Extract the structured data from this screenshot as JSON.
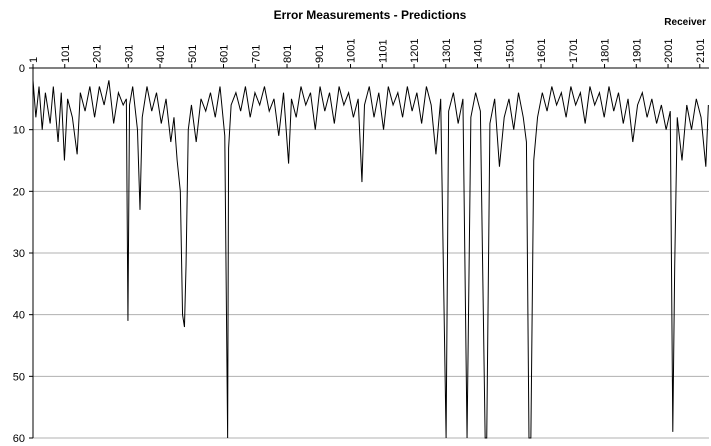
{
  "chart_data": {
    "type": "line",
    "title": "Error Measurements - Predictions",
    "x_label": "Receiver",
    "color": "#000000",
    "y_inverted": true,
    "grid": true,
    "xaxis_position": "top",
    "xlim": [
      1,
      2130
    ],
    "ylim": [
      0,
      60
    ],
    "xticks": [
      1,
      101,
      201,
      301,
      401,
      501,
      601,
      701,
      801,
      901,
      1001,
      1101,
      1201,
      1301,
      1401,
      1501,
      1601,
      1701,
      1801,
      1901,
      2001,
      2101
    ],
    "yticks": [
      0,
      10,
      20,
      30,
      40,
      50,
      60
    ],
    "x": [
      1,
      10,
      20,
      30,
      40,
      55,
      65,
      80,
      90,
      100,
      110,
      125,
      140,
      150,
      165,
      180,
      195,
      210,
      225,
      240,
      255,
      270,
      285,
      295,
      300,
      305,
      315,
      330,
      338,
      345,
      360,
      375,
      390,
      405,
      420,
      435,
      445,
      455,
      465,
      472,
      478,
      483,
      490,
      500,
      515,
      530,
      545,
      560,
      575,
      590,
      605,
      612,
      614,
      617,
      625,
      640,
      655,
      670,
      685,
      700,
      715,
      730,
      745,
      760,
      775,
      790,
      806,
      815,
      830,
      845,
      860,
      875,
      890,
      905,
      920,
      935,
      950,
      965,
      980,
      995,
      1010,
      1025,
      1037,
      1045,
      1060,
      1075,
      1090,
      1105,
      1120,
      1135,
      1150,
      1165,
      1180,
      1195,
      1210,
      1225,
      1240,
      1255,
      1270,
      1285,
      1302,
      1310,
      1325,
      1340,
      1355,
      1368,
      1380,
      1395,
      1410,
      1425,
      1430,
      1440,
      1455,
      1470,
      1485,
      1500,
      1515,
      1530,
      1545,
      1555,
      1563,
      1569,
      1578,
      1590,
      1605,
      1620,
      1635,
      1650,
      1665,
      1680,
      1695,
      1710,
      1725,
      1740,
      1755,
      1770,
      1785,
      1800,
      1815,
      1830,
      1845,
      1860,
      1875,
      1890,
      1905,
      1920,
      1935,
      1950,
      1965,
      1980,
      1995,
      2008,
      2016,
      2022,
      2030,
      2045,
      2060,
      2075,
      2090,
      2105,
      2120,
      2128
    ],
    "values": [
      2,
      8,
      3,
      10,
      4,
      9,
      3,
      12,
      4,
      15,
      5,
      8,
      14,
      4,
      7,
      3,
      8,
      3,
      6,
      2,
      9,
      4,
      6,
      5,
      41,
      6,
      3,
      10,
      23,
      8,
      3,
      7,
      4,
      9,
      5,
      12,
      8,
      15,
      20,
      40,
      42,
      32,
      10,
      6,
      12,
      5,
      7,
      4,
      8,
      3,
      11,
      49,
      60,
      13,
      6,
      4,
      7,
      3,
      8,
      4,
      6,
      3,
      7,
      5,
      11,
      4,
      15.5,
      5,
      8,
      3,
      6,
      4,
      10,
      3,
      7,
      4,
      9,
      3,
      6,
      4,
      8,
      5,
      18.5,
      6,
      3,
      8,
      4,
      10,
      3,
      6,
      4,
      8,
      3,
      7,
      4,
      9,
      3,
      6,
      14,
      5,
      60,
      7,
      4,
      9,
      5,
      60,
      8,
      4,
      7,
      60,
      60,
      9,
      5,
      16,
      8,
      5,
      10,
      4,
      8,
      12,
      60,
      60,
      15,
      8,
      4,
      7,
      3,
      6,
      4,
      8,
      3,
      6,
      4,
      9,
      3,
      6,
      4,
      8,
      3,
      7,
      4,
      9,
      5,
      12,
      6,
      4,
      8,
      5,
      9,
      6,
      10,
      7,
      59,
      32,
      8,
      15,
      6,
      10,
      5,
      8,
      16,
      6
    ]
  }
}
